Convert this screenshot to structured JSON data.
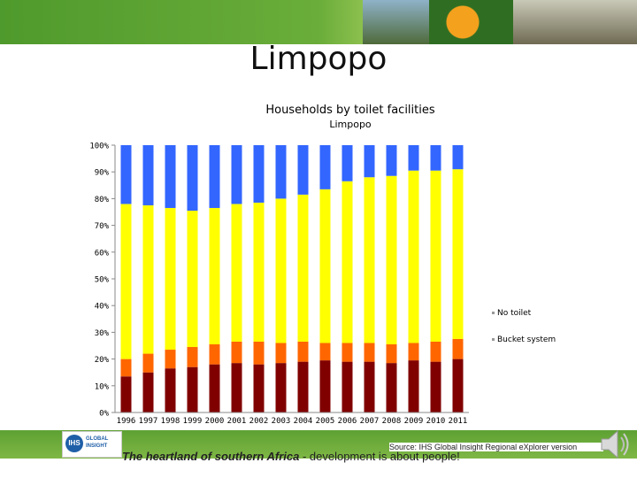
{
  "slide": {
    "title": "Limpopo",
    "tagline_bold": "The heartland of southern Africa",
    "tagline_rest": " - development is about people!",
    "source": "Source: IHS Global Insight Regional eXplorer version",
    "logo_short": "IHS",
    "logo_line1": "GLOBAL",
    "logo_line2": "INSIGHT"
  },
  "colors": {
    "no_toilet": "#3366ff",
    "yellow_segment": "#ffff00",
    "bucket_system": "#ff6600",
    "dark_segment": "#800000"
  },
  "chart_data": {
    "type": "bar",
    "stacked": true,
    "title": "Households by toilet facilities",
    "subtitle": "Limpopo",
    "xlabel": "",
    "ylabel": "",
    "ylim": [
      0,
      100
    ],
    "yticks": [
      "0%",
      "10%",
      "20%",
      "30%",
      "40%",
      "50%",
      "60%",
      "70%",
      "80%",
      "90%",
      "100%"
    ],
    "grid": false,
    "legend_position": "right",
    "categories": [
      "1996",
      "1997",
      "1998",
      "1999",
      "2000",
      "2001",
      "2002",
      "2003",
      "2004",
      "2005",
      "2006",
      "2007",
      "2008",
      "2009",
      "2010",
      "2011"
    ],
    "series": [
      {
        "color": "#800000",
        "values": [
          13.5,
          15,
          16.5,
          17,
          18,
          18.5,
          18,
          18.5,
          19,
          19.5,
          19,
          19,
          18.5,
          19.5,
          19,
          20
        ]
      },
      {
        "name": "Bucket system",
        "color": "#ff6600",
        "values": [
          6.5,
          7,
          7,
          7.5,
          7.5,
          8,
          8.5,
          7.5,
          7.5,
          6.5,
          7,
          7,
          7,
          6.5,
          7.5,
          7.5
        ]
      },
      {
        "color": "#ffff00",
        "values": [
          58,
          55.5,
          53,
          51,
          51,
          51.5,
          52,
          54,
          55,
          57.5,
          60.5,
          62,
          63,
          64.5,
          64,
          63.5
        ]
      },
      {
        "name": "No toilet",
        "color": "#3366ff",
        "values": [
          22,
          22.5,
          23.5,
          24.5,
          23.5,
          22,
          21.5,
          20,
          18.5,
          16.5,
          13.5,
          12,
          11.5,
          9.5,
          9.5,
          9
        ]
      }
    ]
  }
}
